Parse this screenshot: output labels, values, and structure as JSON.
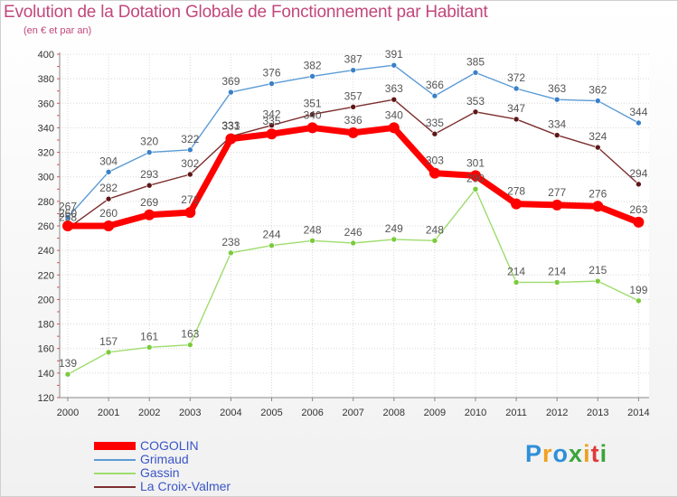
{
  "title": "Evolution de la Dotation Globale de Fonctionnement par Habitant",
  "subtitle": "(en € et par an)",
  "logo": {
    "text": "Proxiti",
    "letters": [
      {
        "ch": "P",
        "color": "#2e8fd8"
      },
      {
        "ch": "r",
        "color": "#f0a020"
      },
      {
        "ch": "o",
        "color": "#2e8fd8"
      },
      {
        "ch": "x",
        "color": "#3aa53a"
      },
      {
        "ch": "i",
        "color": "#f0a020"
      },
      {
        "ch": "t",
        "color": "#e03a3a"
      },
      {
        "ch": "i",
        "color": "#3aa53a"
      }
    ]
  },
  "chart_data": {
    "type": "line",
    "title": "Evolution de la Dotation Globale de Fonctionnement par Habitant",
    "subtitle": "(en € et par an)",
    "xlabel": "",
    "ylabel": "",
    "x": [
      "2000",
      "2001",
      "2002",
      "2003",
      "2004",
      "2005",
      "2006",
      "2007",
      "2008",
      "2009",
      "2010",
      "2011",
      "2012",
      "2013",
      "2014"
    ],
    "ylim": [
      120,
      400
    ],
    "yticks": [
      120,
      140,
      160,
      180,
      200,
      220,
      240,
      260,
      280,
      300,
      320,
      340,
      360,
      380,
      400
    ],
    "grid": true,
    "legend_position": "bottom-left",
    "series": [
      {
        "name": "COGOLIN",
        "color": "#ff0000",
        "emphasis": true,
        "values": [
          260,
          260,
          269,
          271,
          331,
          335,
          340,
          336,
          340,
          303,
          301,
          278,
          277,
          276,
          263
        ],
        "labels": [
          "260",
          "260",
          "269",
          "271",
          "331",
          "335",
          "340",
          "336",
          "340",
          "303",
          "301",
          "278",
          "277",
          "276",
          "263"
        ]
      },
      {
        "name": "Grimaud",
        "color": "#5b9bd5",
        "marker": "#3a80c8",
        "values": [
          267,
          304,
          320,
          322,
          369,
          376,
          382,
          387,
          391,
          366,
          385,
          372,
          363,
          362,
          344
        ],
        "labels": [
          "267",
          "304",
          "320",
          "322",
          "369",
          "376",
          "382",
          "387",
          "391",
          "366",
          "385",
          "372",
          "363",
          "362",
          "344"
        ]
      },
      {
        "name": "Gassin",
        "color": "#9fdc6e",
        "marker": "#7acb3c",
        "values": [
          139,
          157,
          161,
          163,
          238,
          244,
          248,
          246,
          249,
          248,
          290,
          214,
          214,
          215,
          199
        ],
        "labels": [
          "139",
          "157",
          "161",
          "163",
          "238",
          "244",
          "248",
          "246",
          "249",
          "248",
          "290",
          "214",
          "214",
          "215",
          "199"
        ]
      },
      {
        "name": "La Croix-Valmer",
        "color": "#7d2e2e",
        "marker": "#5e1717",
        "values": [
          258,
          282,
          293,
          302,
          333,
          342,
          351,
          357,
          363,
          335,
          353,
          347,
          334,
          324,
          294
        ],
        "labels": [
          "258",
          "282",
          "293",
          "302",
          "333",
          "342",
          "351",
          "357",
          "363",
          "335",
          "353",
          "347",
          "334",
          "324",
          "294"
        ]
      }
    ]
  }
}
